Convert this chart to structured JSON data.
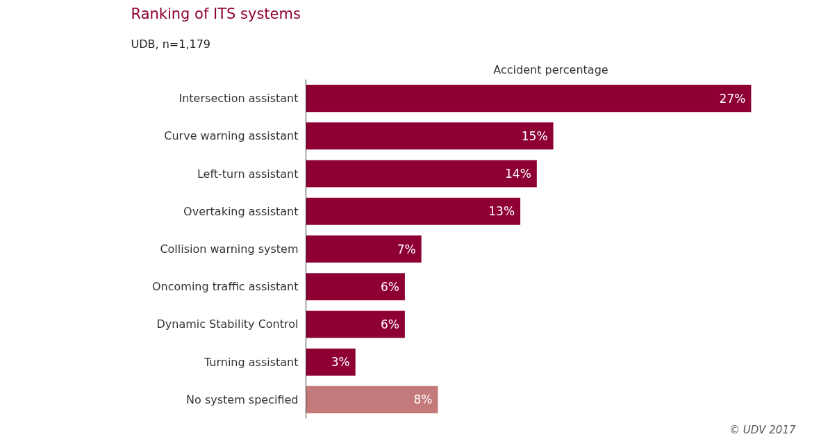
{
  "chart_data": {
    "type": "bar",
    "orientation": "horizontal",
    "title": "Ranking of ITS systems",
    "subtitle": "UDB, n=1,179",
    "xlabel": "Accident percentage",
    "categories": [
      "Intersection assistant",
      "Curve warning assistant",
      "Left-turn assistant",
      "Overtaking assistant",
      "Collision warning system",
      "Oncoming traffic assistant",
      "Dynamic Stability Control",
      "Turning assistant",
      "No system specified"
    ],
    "values": [
      27,
      15,
      14,
      13,
      7,
      6,
      6,
      3,
      8
    ],
    "colors": [
      "#8e0033",
      "#8e0033",
      "#8e0033",
      "#8e0033",
      "#8e0033",
      "#8e0033",
      "#8e0033",
      "#8e0033",
      "#c47a7a"
    ],
    "value_labels": [
      "27%",
      "15%",
      "14%",
      "13%",
      "7%",
      "6%",
      "6%",
      "3%",
      "8%"
    ],
    "tick_labels": "y",
    "grid": false,
    "annotations": [
      "© UDV 2017"
    ]
  }
}
